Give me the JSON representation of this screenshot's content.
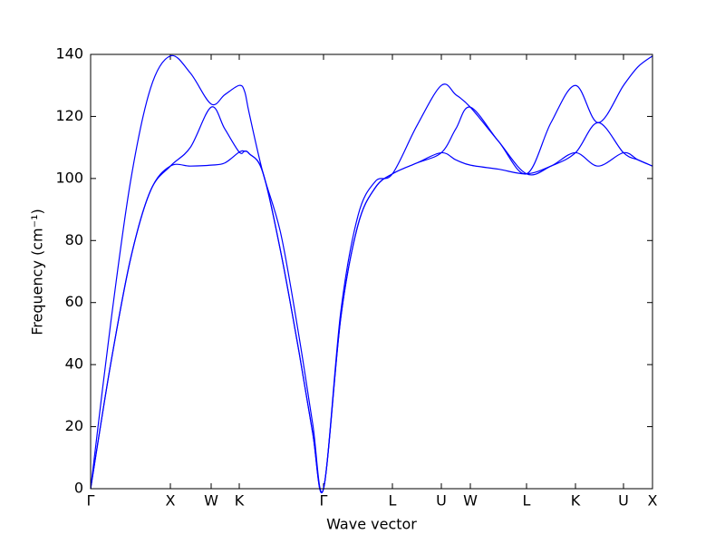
{
  "chart_data": {
    "type": "line",
    "xlabel": "Wave vector",
    "ylabel": "Frequency (cm⁻¹)",
    "x": [
      0,
      0.22,
      0.44,
      0.66,
      0.88,
      1.1,
      1.33,
      1.48,
      1.64,
      1.7,
      1.75,
      1.9,
      2.1,
      2.3,
      2.45,
      2.57,
      2.76,
      2.95,
      3.14,
      3.33,
      3.6,
      3.87,
      4.03,
      4.19,
      4.5,
      4.81,
      5.08,
      5.35,
      5.6,
      5.88,
      6.04,
      6.2
    ],
    "series": [
      {
        "color": "#0000ff",
        "values": [
          0,
          40,
          74,
          96,
          104,
          104,
          104.3,
          105,
          108.5,
          108.8,
          108,
          102,
          76,
          44,
          18,
          0,
          55,
          85,
          97,
          101.5,
          105,
          108.3,
          106,
          104.3,
          103,
          101.5,
          104,
          108.3,
          104,
          108.3,
          106,
          104
        ]
      },
      {
        "color": "#0000ff",
        "values": [
          0,
          40,
          74,
          96,
          104,
          110,
          123,
          116,
          108.5,
          108.8,
          108,
          102,
          76,
          44,
          18,
          0,
          55,
          85,
          97,
          101.5,
          105,
          108.3,
          116,
          123,
          112,
          101.5,
          104,
          108.3,
          118,
          108.3,
          106,
          104
        ]
      },
      {
        "color": "#0000ff",
        "values": [
          0,
          53,
          99,
          129,
          139.5,
          134,
          124,
          127,
          130,
          128,
          121,
          102,
          82,
          49,
          21,
          0,
          57,
          88,
          99,
          101.5,
          117,
          130,
          127,
          123,
          112,
          101.5,
          118,
          130,
          118,
          130,
          136,
          139.5
        ]
      }
    ],
    "xlim": [
      0,
      6.2
    ],
    "xticks": [
      {
        "value": 0,
        "label": "Γ"
      },
      {
        "value": 0.88,
        "label": "X"
      },
      {
        "value": 1.33,
        "label": "W"
      },
      {
        "value": 1.64,
        "label": "K"
      },
      {
        "value": 2.57,
        "label": "Γ"
      },
      {
        "value": 3.33,
        "label": "L"
      },
      {
        "value": 3.87,
        "label": "U"
      },
      {
        "value": 4.19,
        "label": "W"
      },
      {
        "value": 4.81,
        "label": "L"
      },
      {
        "value": 5.35,
        "label": "K"
      },
      {
        "value": 5.88,
        "label": "U"
      },
      {
        "value": 6.2,
        "label": "X"
      }
    ],
    "ylim": [
      0,
      140
    ],
    "yticks": [
      0,
      20,
      40,
      60,
      80,
      100,
      120,
      140
    ],
    "grid": false
  }
}
